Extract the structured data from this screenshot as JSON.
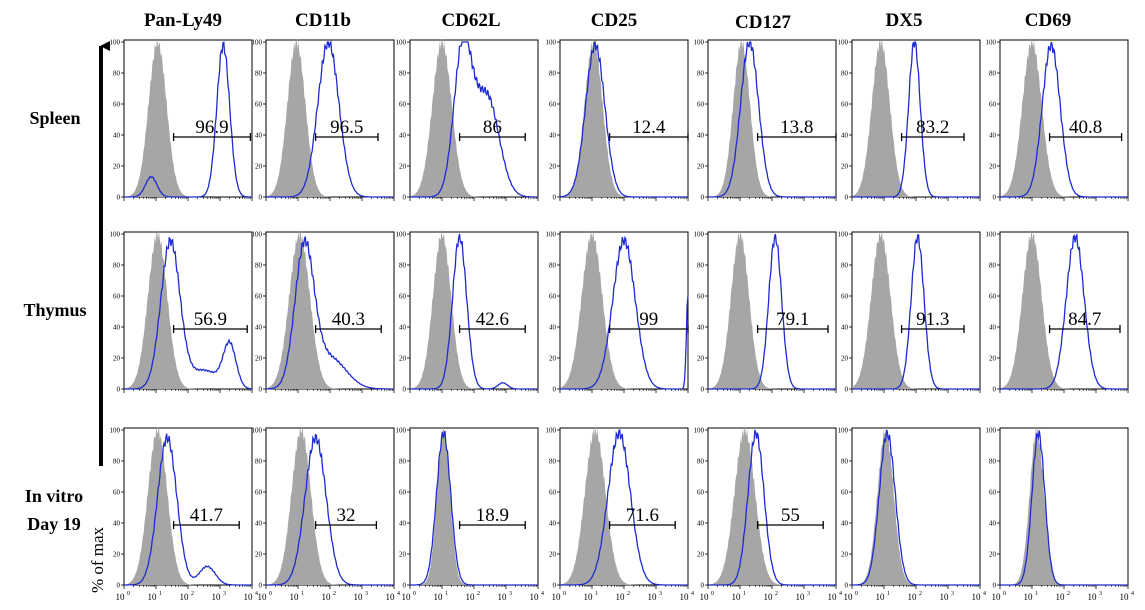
{
  "chart_data": {
    "type": "histogram-grid",
    "column_headers": [
      "Pan-Ly49",
      "CD11b",
      "CD62L",
      "CD25",
      "CD127",
      "DX5",
      "CD69"
    ],
    "row_labels": [
      [
        "Spleen"
      ],
      [
        "Thymus"
      ],
      [
        "In vitro",
        "Day 19"
      ]
    ],
    "ylabel": "% of max",
    "y_ticks": [
      "0",
      "20",
      "40",
      "60",
      "80",
      "100"
    ],
    "y_range": [
      0,
      100
    ],
    "x_tick_base": "10",
    "x_tick_exponents": [
      "0",
      "1",
      "2",
      "3",
      "4"
    ],
    "x_range_log10": [
      0,
      4
    ],
    "colors": {
      "isotype_fill": "#a6a6a6",
      "stain_line": "#1f2bd0",
      "frame": "#000000"
    },
    "panels": [
      [
        {
          "iso": [
            1.05,
            0.28
          ],
          "stain": [
            [
              0.85,
              0.18,
              0.13
            ],
            [
              3.1,
              0.2,
              0.98
            ]
          ],
          "pct": "96.9",
          "gate": [
            1.55,
            3.95
          ]
        },
        {
          "iso": [
            0.95,
            0.28
          ],
          "stain": [
            [
              1.95,
              0.33,
              1.0
            ]
          ],
          "pct": "96.5",
          "gate": [
            1.55,
            3.5
          ]
        },
        {
          "iso": [
            1.0,
            0.3
          ],
          "stain": [
            [
              1.65,
              0.28,
              0.95
            ],
            [
              2.4,
              0.38,
              0.65
            ]
          ],
          "pct": "86",
          "gate": [
            1.55,
            3.6
          ]
        },
        {
          "iso": [
            1.05,
            0.28
          ],
          "stain": [
            [
              1.1,
              0.3,
              0.98
            ]
          ],
          "pct": "12.4",
          "gate": [
            1.55,
            4.0
          ]
        },
        {
          "iso": [
            1.05,
            0.26
          ],
          "stain": [
            [
              1.3,
              0.28,
              1.0
            ]
          ],
          "pct": "13.8",
          "gate": [
            1.55,
            4.0
          ]
        },
        {
          "iso": [
            0.9,
            0.28
          ],
          "stain": [
            [
              1.95,
              0.18,
              1.0
            ]
          ],
          "pct": "83.2",
          "gate": [
            1.55,
            3.5
          ]
        },
        {
          "iso": [
            1.0,
            0.3
          ],
          "stain": [
            [
              1.6,
              0.28,
              0.98
            ]
          ],
          "pct": "40.8",
          "gate": [
            1.55,
            3.8
          ]
        }
      ],
      [
        {
          "iso": [
            1.05,
            0.3
          ],
          "stain": [
            [
              1.45,
              0.3,
              0.95
            ],
            [
              3.3,
              0.2,
              0.28
            ],
            [
              2.5,
              0.45,
              0.12
            ]
          ],
          "pct": "56.9",
          "gate": [
            1.55,
            3.85
          ]
        },
        {
          "iso": [
            1.05,
            0.32
          ],
          "stain": [
            [
              1.2,
              0.3,
              0.9
            ],
            [
              2.0,
              0.5,
              0.2
            ]
          ],
          "pct": "40.3",
          "gate": [
            1.55,
            3.6
          ]
        },
        {
          "iso": [
            1.0,
            0.28
          ],
          "stain": [
            [
              1.55,
              0.22,
              0.98
            ],
            [
              2.9,
              0.15,
              0.04
            ]
          ],
          "pct": "42.6",
          "gate": [
            1.55,
            3.6
          ]
        },
        {
          "iso": [
            1.0,
            0.32
          ],
          "stain": [
            [
              2.0,
              0.35,
              0.96
            ],
            [
              4.0,
              0.05,
              0.6
            ]
          ],
          "pct": "99",
          "gate": [
            1.55,
            4.0
          ]
        },
        {
          "iso": [
            1.0,
            0.28
          ],
          "stain": [
            [
              2.1,
              0.2,
              0.98
            ]
          ],
          "pct": "79.1",
          "gate": [
            1.55,
            3.75
          ]
        },
        {
          "iso": [
            0.9,
            0.3
          ],
          "stain": [
            [
              2.05,
              0.2,
              0.98
            ]
          ],
          "pct": "91.3",
          "gate": [
            1.55,
            3.5
          ]
        },
        {
          "iso": [
            1.0,
            0.3
          ],
          "stain": [
            [
              2.35,
              0.28,
              0.98
            ]
          ],
          "pct": "84.7",
          "gate": [
            1.55,
            3.75
          ]
        }
      ],
      [
        {
          "iso": [
            1.05,
            0.3
          ],
          "stain": [
            [
              1.35,
              0.3,
              0.95
            ],
            [
              2.6,
              0.25,
              0.12
            ]
          ],
          "pct": "41.7",
          "gate": [
            1.55,
            3.6
          ]
        },
        {
          "iso": [
            1.1,
            0.3
          ],
          "stain": [
            [
              1.55,
              0.33,
              0.95
            ]
          ],
          "pct": "32",
          "gate": [
            1.55,
            3.45
          ]
        },
        {
          "iso": [
            1.05,
            0.2
          ],
          "stain": [
            [
              1.05,
              0.22,
              0.98
            ]
          ],
          "pct": "18.9",
          "gate": [
            1.55,
            3.6
          ]
        },
        {
          "iso": [
            1.1,
            0.32
          ],
          "stain": [
            [
              1.85,
              0.35,
              0.98
            ]
          ],
          "pct": "71.6",
          "gate": [
            1.55,
            3.6
          ]
        },
        {
          "iso": [
            1.15,
            0.32
          ],
          "stain": [
            [
              1.5,
              0.25,
              0.98
            ]
          ],
          "pct": "55",
          "gate": [
            1.55,
            3.6
          ]
        },
        {
          "iso": [
            1.05,
            0.25
          ],
          "stain": [
            [
              1.1,
              0.25,
              0.98
            ]
          ],
          "pct": "",
          "gate": []
        },
        {
          "iso": [
            1.15,
            0.22
          ],
          "stain": [
            [
              1.2,
              0.2,
              0.98
            ]
          ],
          "pct": "",
          "gate": []
        }
      ]
    ]
  }
}
